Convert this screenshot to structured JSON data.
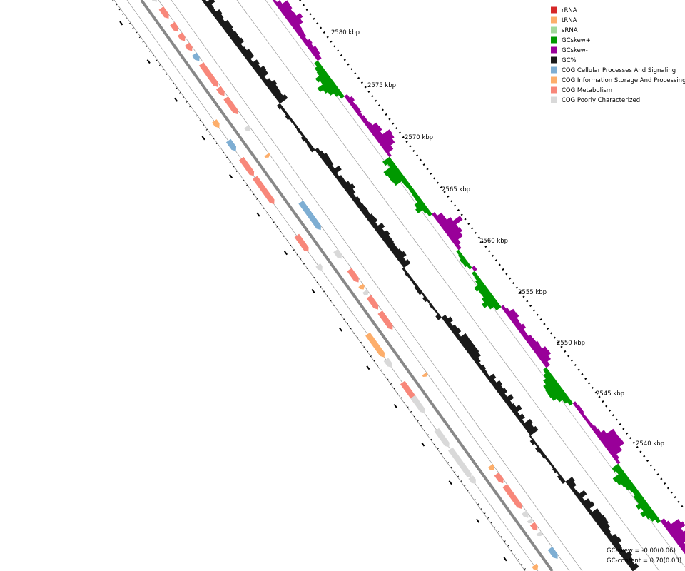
{
  "legend": [
    {
      "label": "rRNA",
      "color": "#d62728"
    },
    {
      "label": "tRNA",
      "color": "#fdae6b"
    },
    {
      "label": "sRNA",
      "color": "#a1d99b"
    },
    {
      "label": "GCskew+",
      "color": "#009900"
    },
    {
      "label": "GCskew-",
      "color": "#990099"
    },
    {
      "label": "GC%",
      "color": "#1a1a1a"
    },
    {
      "label": "COG Cellular Processes And Signaling",
      "color": "#7eaed3"
    },
    {
      "label": "COG Information Storage And Processing",
      "color": "#fdae6b"
    },
    {
      "label": "COG Metabolism",
      "color": "#f8877a"
    },
    {
      "label": "COG Poorly Characterized",
      "color": "#d9d9d9"
    }
  ],
  "scale_labels": [
    "2580 kbp",
    "2575 kbp",
    "2570 kbp",
    "2565 kbp",
    "2560 kbp",
    "2555 kbp",
    "2550 kbp",
    "2545 kbp",
    "2540 kbp"
  ],
  "stats": [
    "GC-skew = -0.00(0.06)",
    "GC-content = 0.70(0.03)"
  ]
}
